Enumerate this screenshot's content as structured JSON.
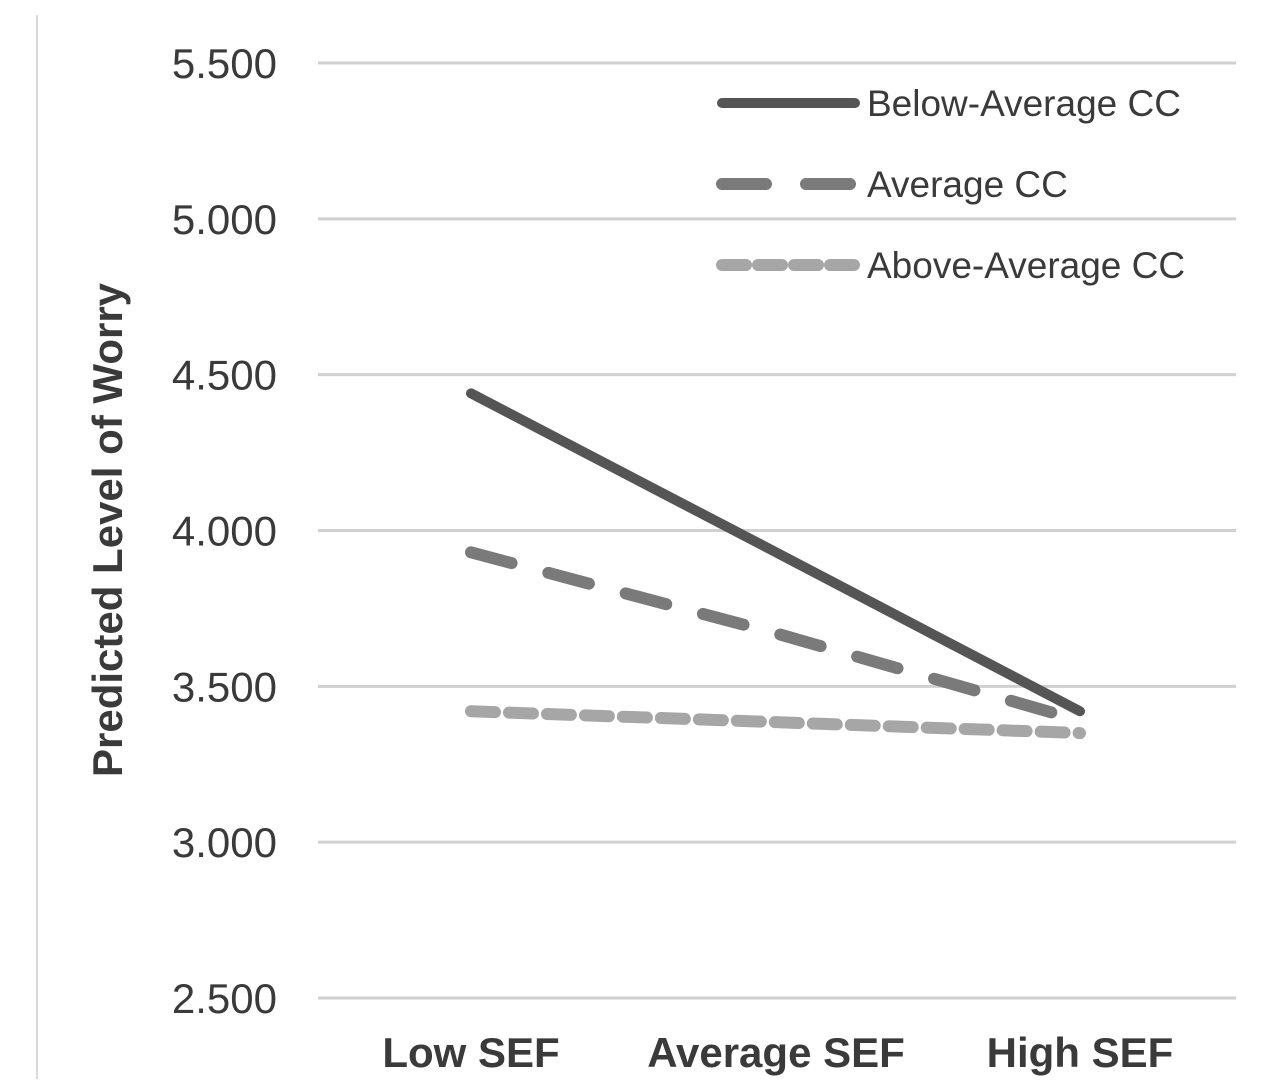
{
  "chart_data": {
    "type": "line",
    "title": "",
    "xlabel": "",
    "ylabel": "Predicted Level of Worry",
    "categories": [
      "Low SEF",
      "Average SEF",
      "High SEF"
    ],
    "ylim": [
      2.5,
      5.5
    ],
    "yticks": [
      "2.500",
      "3.000",
      "3.500",
      "4.000",
      "4.500",
      "5.000",
      "5.500"
    ],
    "grid": true,
    "legend_position": "top-right",
    "series": [
      {
        "name": "Below-Average CC",
        "values": [
          4.44,
          3.93,
          3.42
        ],
        "color": "#555555",
        "style": "solid"
      },
      {
        "name": "Average CC",
        "values": [
          3.93,
          3.67,
          3.39
        ],
        "color": "#7a7a7a",
        "style": "dashed"
      },
      {
        "name": "Above-Average CC",
        "values": [
          3.42,
          3.385,
          3.35
        ],
        "color": "#a6a6a6",
        "style": "short-dashed"
      }
    ]
  }
}
